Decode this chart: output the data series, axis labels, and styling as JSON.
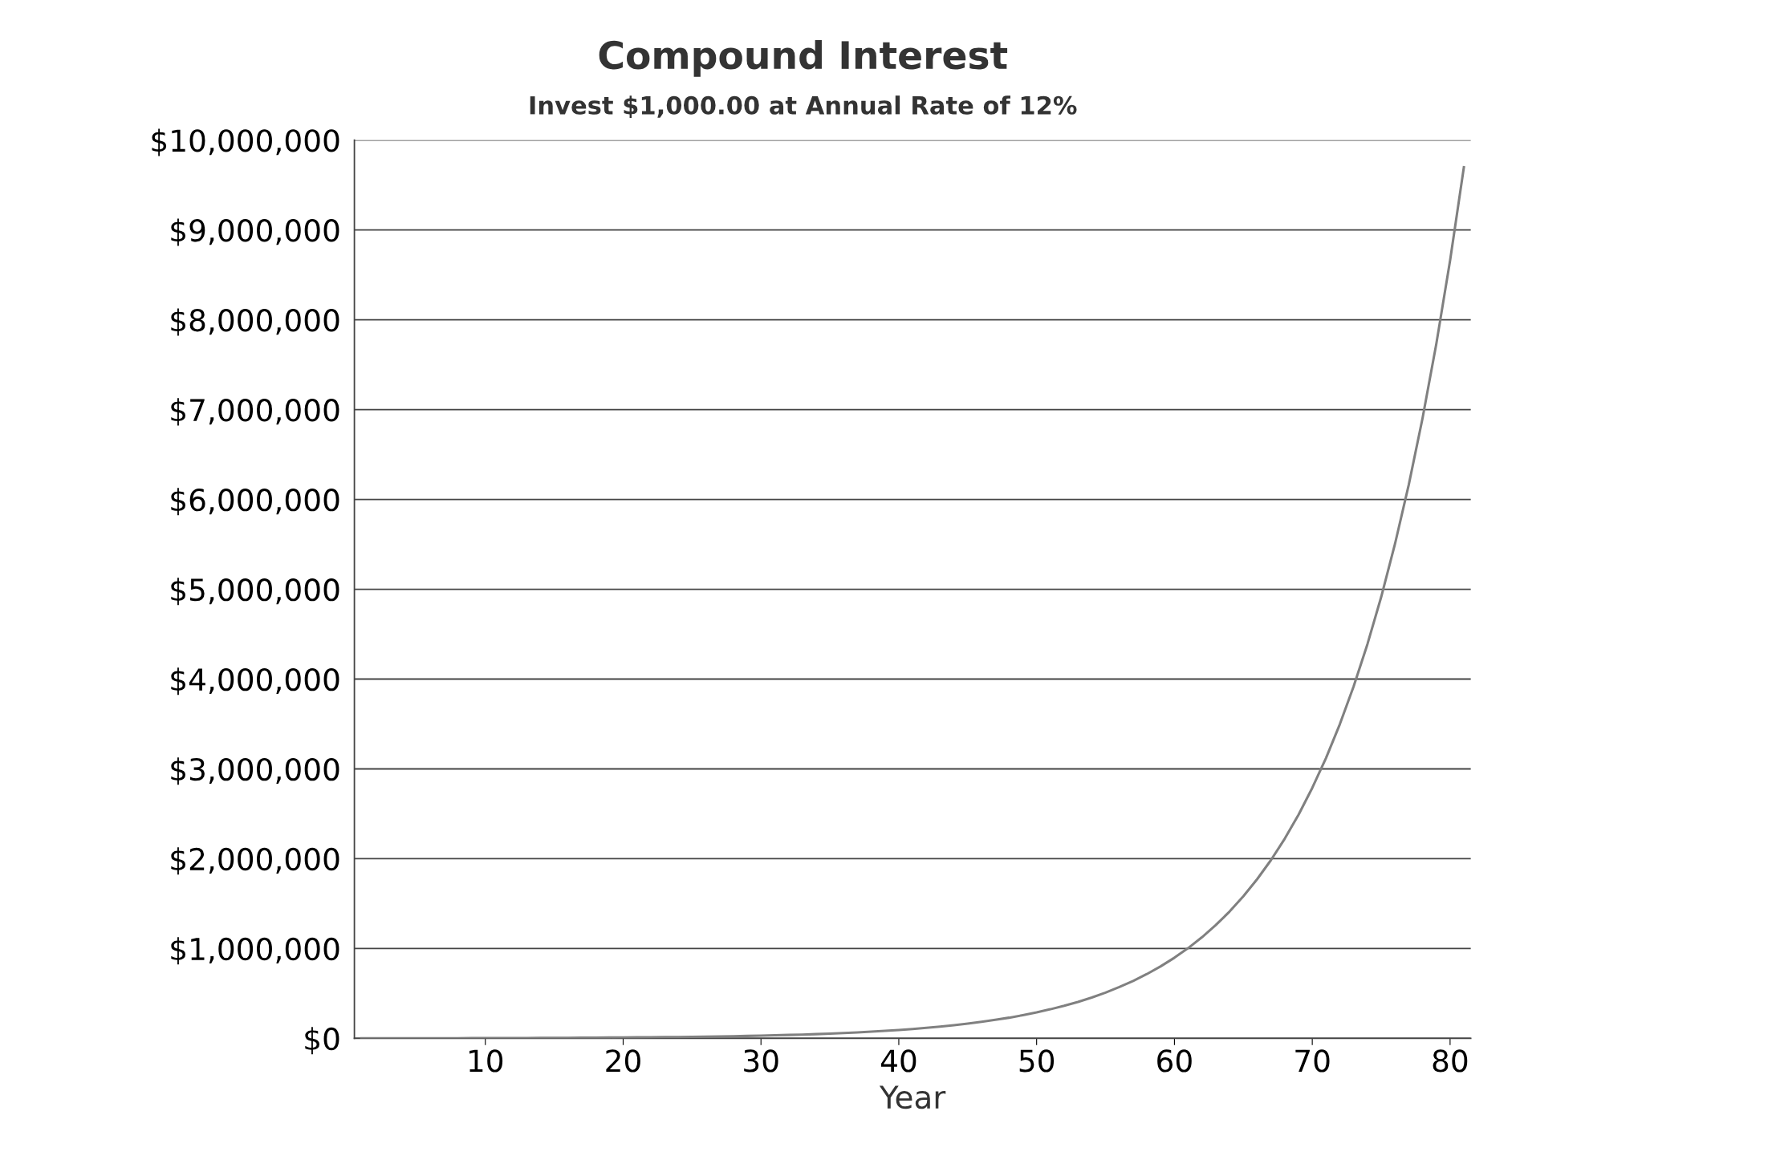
{
  "chart_data": {
    "type": "line",
    "title": "Compound Interest",
    "subtitle": "Invest $1,000.00 at Annual Rate of 12%",
    "xlabel": "Year",
    "x": [
      1,
      2,
      3,
      4,
      5,
      6,
      7,
      8,
      9,
      10,
      11,
      12,
      13,
      14,
      15,
      16,
      17,
      18,
      19,
      20,
      21,
      22,
      23,
      24,
      25,
      26,
      27,
      28,
      29,
      30,
      31,
      32,
      33,
      34,
      35,
      36,
      37,
      38,
      39,
      40,
      41,
      42,
      43,
      44,
      45,
      46,
      47,
      48,
      49,
      50,
      51,
      52,
      53,
      54,
      55,
      56,
      57,
      58,
      59,
      60,
      61,
      62,
      63,
      64,
      65,
      66,
      67,
      68,
      69,
      70,
      71,
      72,
      73,
      74,
      75,
      76,
      77,
      78,
      79,
      80,
      81
    ],
    "series": [
      {
        "color": "#808080",
        "values": [
          1000,
          1000,
          1000,
          2000,
          2000,
          2000,
          2000,
          2000,
          3000,
          3000,
          3000,
          4000,
          4000,
          5000,
          5000,
          6000,
          7000,
          8000,
          9000,
          10000,
          11000,
          12000,
          14000,
          15000,
          17000,
          19000,
          21000,
          24000,
          27000,
          30000,
          34000,
          38000,
          42000,
          47000,
          53000,
          59000,
          66000,
          74000,
          83000,
          93000,
          104000,
          117000,
          131000,
          146000,
          164000,
          184000,
          206000,
          230000,
          258000,
          289000,
          324000,
          363000,
          406000,
          455000,
          509000,
          571000,
          639000,
          716000,
          802000,
          898000,
          1005000,
          1126000,
          1261000,
          1412000,
          1582000,
          1772000,
          1984000,
          2222000,
          2489000,
          2788000,
          3122000,
          3497000,
          3917000,
          4387000,
          4913000,
          5503000,
          6163000,
          6903000,
          7731000,
          8659000,
          9698000
        ]
      }
    ],
    "xlim": [
      0.5,
      81.5
    ],
    "xticks": [
      10,
      20,
      30,
      40,
      50,
      60,
      70,
      80
    ],
    "ylim": [
      0,
      10000000
    ],
    "yticks": [
      {
        "value": 0,
        "label": "$0"
      },
      {
        "value": 1000000,
        "label": "$1,000,000"
      },
      {
        "value": 2000000,
        "label": "$2,000,000"
      },
      {
        "value": 3000000,
        "label": "$3,000,000"
      },
      {
        "value": 4000000,
        "label": "$4,000,000"
      },
      {
        "value": 5000000,
        "label": "$5,000,000"
      },
      {
        "value": 6000000,
        "label": "$6,000,000"
      },
      {
        "value": 7000000,
        "label": "$7,000,000"
      },
      {
        "value": 8000000,
        "label": "$8,000,000"
      },
      {
        "value": 9000000,
        "label": "$9,000,000"
      },
      {
        "value": 10000000,
        "label": "$10,000,000"
      }
    ],
    "grid": "y",
    "legend": false,
    "marker": "none",
    "line_style": "solid"
  }
}
